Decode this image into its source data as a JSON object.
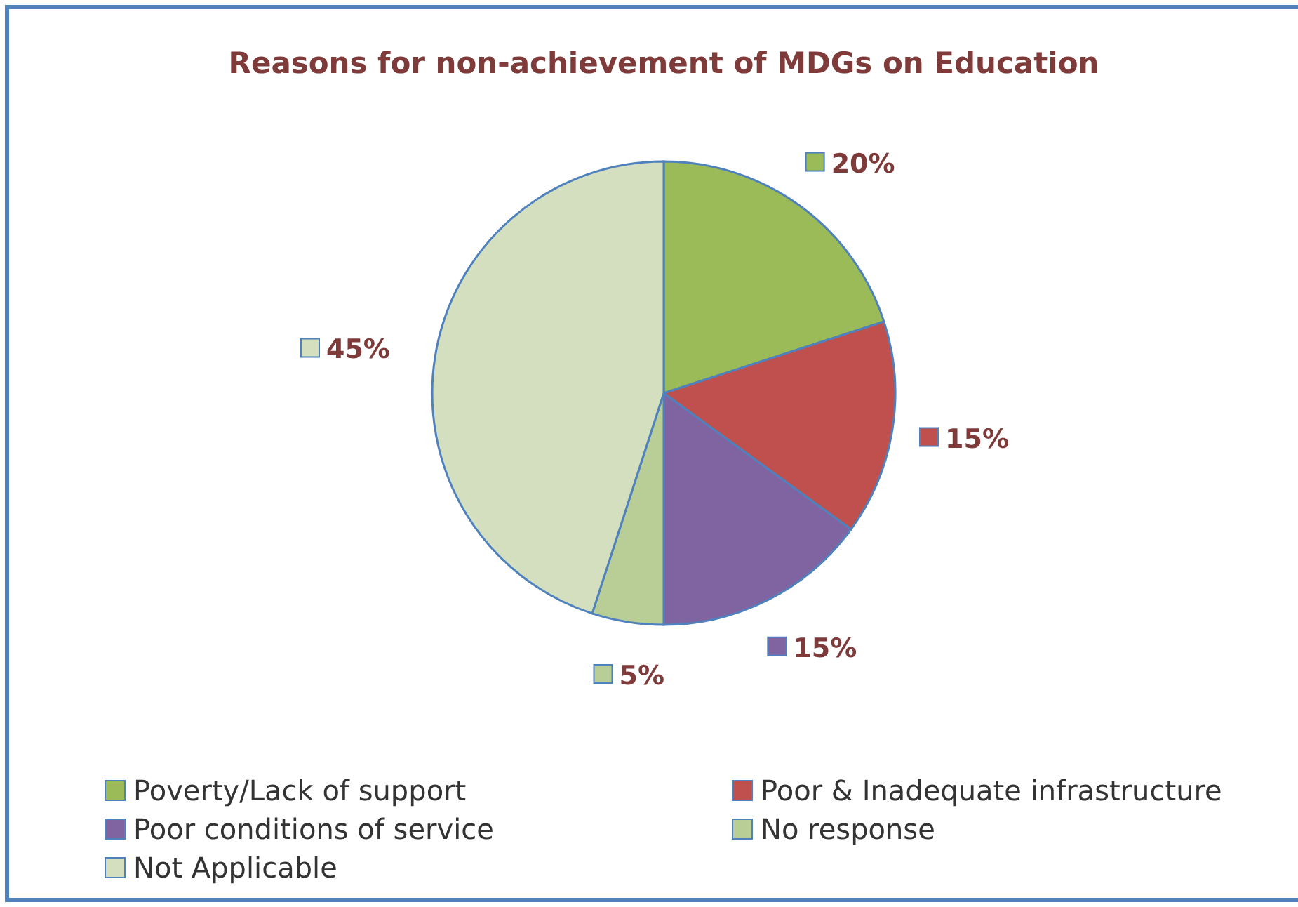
{
  "chart_data": {
    "type": "pie",
    "title": "Reasons for non-achievement of MDGs on Education",
    "categories": [
      "Poverty/Lack of support",
      "Poor & Inadequate infrastructure",
      "Poor conditions of service",
      "No response",
      "Not Applicable"
    ],
    "values": [
      20,
      15,
      15,
      5,
      45
    ],
    "colors": [
      "#9bbb59",
      "#c0504d",
      "#8064a2",
      "#b9cd96",
      "#d3dfbf"
    ],
    "value_labels": [
      "20%",
      "15%",
      "15%",
      "5%",
      "45%"
    ],
    "legend": "bottom"
  }
}
